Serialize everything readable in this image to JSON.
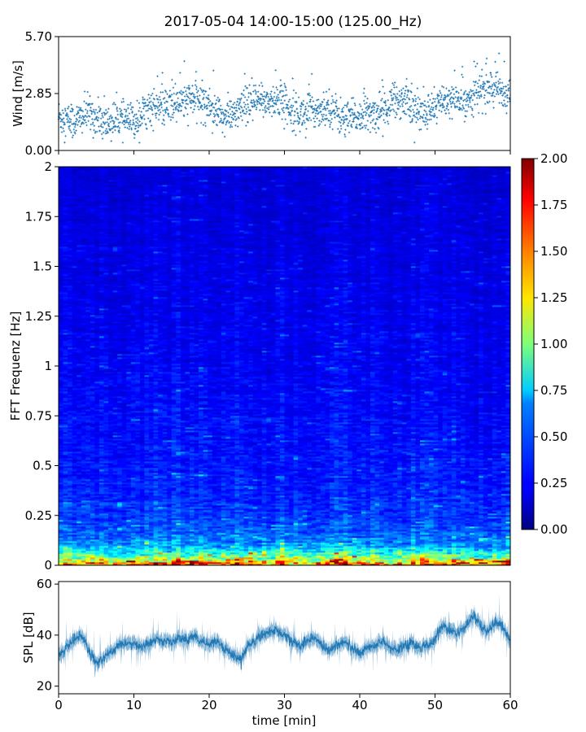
{
  "figure": {
    "title": "2017-05-04 14:00-15:00 (125.00_Hz)"
  },
  "chart_data": [
    {
      "id": "wind",
      "type": "scatter",
      "ylabel": "Wind [m/s]",
      "xlabel": "",
      "xlim": [
        0,
        60
      ],
      "ylim": [
        0,
        5.7
      ],
      "yticks": [
        0.0,
        2.85,
        5.7
      ],
      "ytick_labels": [
        "0.00",
        "2.85",
        "5.70"
      ],
      "xticks": [
        0,
        10,
        20,
        30,
        40,
        50,
        60
      ],
      "color": "#1f77b4",
      "series": [
        {
          "trend_x": [
            0,
            2,
            4,
            6,
            8,
            10,
            12,
            14,
            16,
            18,
            20,
            22,
            24,
            26,
            28,
            30,
            32,
            34,
            36,
            38,
            40,
            42,
            44,
            46,
            48,
            50,
            52,
            54,
            56,
            58,
            60
          ],
          "trend_y": [
            1.7,
            1.4,
            1.9,
            1.3,
            1.6,
            1.4,
            2.2,
            2.1,
            2.4,
            2.6,
            2.3,
            1.6,
            2.0,
            2.4,
            2.5,
            2.4,
            1.8,
            2.0,
            2.2,
            1.5,
            1.7,
            1.8,
            2.3,
            2.6,
            1.8,
            2.3,
            2.5,
            2.5,
            3.0,
            3.1,
            2.8
          ]
        }
      ]
    },
    {
      "id": "spectrogram",
      "type": "heatmap",
      "ylabel": "FFT Frequenz [Hz]",
      "xlabel": "",
      "xlim": [
        0,
        60
      ],
      "ylim": [
        0,
        2
      ],
      "yticks": [
        0,
        0.25,
        0.5,
        0.75,
        1,
        1.25,
        1.5,
        1.75,
        2
      ],
      "ytick_labels": [
        "0",
        "0.25",
        "0.5",
        "0.75",
        "1",
        "1.25",
        "1.5",
        "1.75",
        "2"
      ],
      "colormap": "jet",
      "colorbar": {
        "vmin": 0.0,
        "vmax": 2.0,
        "ticks": [
          0.0,
          0.25,
          0.5,
          0.75,
          1.0,
          1.25,
          1.5,
          1.75,
          2.0
        ],
        "tick_labels": [
          "0.00",
          "0.25",
          "0.50",
          "0.75",
          "1.00",
          "1.25",
          "1.50",
          "1.75",
          "2.00"
        ]
      },
      "level_profile": {
        "freq": [
          0,
          0.02,
          0.05,
          0.1,
          0.15,
          0.25,
          0.4,
          0.6,
          1.0,
          1.5,
          2.0
        ],
        "level": [
          1.6,
          1.3,
          0.9,
          0.55,
          0.45,
          0.35,
          0.3,
          0.27,
          0.23,
          0.2,
          0.17
        ]
      }
    },
    {
      "id": "spl",
      "type": "line",
      "ylabel": "SPL [dB]",
      "xlabel": "time [min]",
      "xlim": [
        0,
        60
      ],
      "ylim": [
        17,
        61
      ],
      "yticks": [
        20,
        40,
        60
      ],
      "ytick_labels": [
        "20",
        "40",
        "60"
      ],
      "xticks": [
        0,
        10,
        20,
        30,
        40,
        50,
        60
      ],
      "xtick_labels": [
        "0",
        "10",
        "20",
        "30",
        "40",
        "50",
        "60"
      ],
      "color": "#1f77b4",
      "series": [
        {
          "x": [
            0,
            1,
            2,
            3,
            4,
            5,
            6,
            7,
            8,
            9,
            10,
            11,
            12,
            13,
            14,
            15,
            16,
            17,
            18,
            19,
            20,
            21,
            22,
            23,
            24,
            25,
            26,
            27,
            28,
            29,
            30,
            31,
            32,
            33,
            34,
            35,
            36,
            37,
            38,
            39,
            40,
            41,
            42,
            43,
            44,
            45,
            46,
            47,
            48,
            49,
            50,
            51,
            52,
            53,
            54,
            55,
            56,
            57,
            58,
            59,
            60
          ],
          "y": [
            32,
            35,
            38,
            40,
            34,
            29,
            31,
            33,
            36,
            37,
            36,
            35,
            37,
            38,
            38,
            37,
            39,
            38,
            40,
            37,
            37,
            38,
            35,
            32,
            30,
            35,
            38,
            40,
            41,
            42,
            40,
            37,
            36,
            38,
            39,
            36,
            34,
            36,
            37,
            35,
            33,
            35,
            36,
            38,
            35,
            34,
            36,
            37,
            35,
            36,
            38,
            44,
            42,
            41,
            43,
            48,
            44,
            41,
            45,
            43,
            38
          ],
          "band_half_width": 2.5
        }
      ]
    }
  ]
}
